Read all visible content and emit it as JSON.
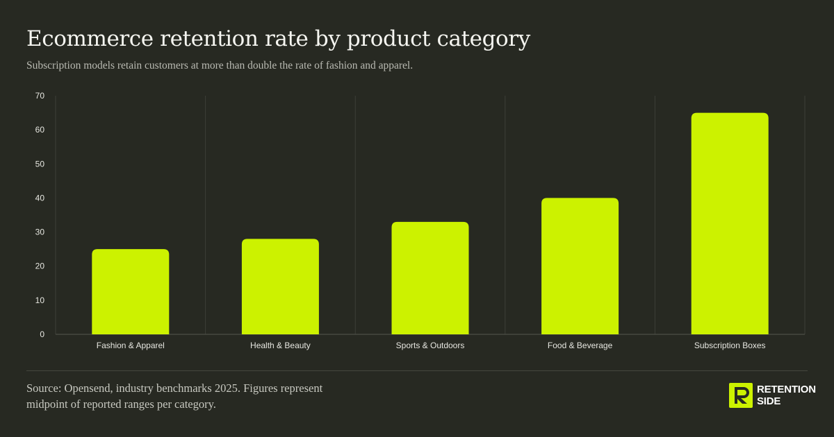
{
  "header": {
    "title": "Ecommerce retention rate by product category",
    "subtitle": "Subscription models retain customers at more than double the rate of fashion and apparel."
  },
  "chart_data": {
    "type": "bar",
    "categories": [
      "Fashion & Apparel",
      "Health & Beauty",
      "Sports & Outdoors",
      "Food & Beverage",
      "Subscription Boxes"
    ],
    "values": [
      25,
      28,
      33,
      40,
      65
    ],
    "title": "Ecommerce retention rate by product category",
    "subtitle": "Subscription models retain customers at more than double the rate of fashion and apparel.",
    "xlabel": "",
    "ylabel": "",
    "ylim": [
      0,
      70
    ],
    "yticks": [
      0,
      10,
      20,
      30,
      40,
      50,
      60,
      70
    ],
    "grid": "vertical category separators",
    "legend": "none",
    "bar_color": "#ccf200"
  },
  "footer": {
    "source": "Source: Opensend, industry benchmarks 2025. Figures represent midpoint of reported ranges per category.",
    "brand_line1": "RETENTION",
    "brand_line2": "SIDE"
  },
  "colors": {
    "background": "#272922",
    "accent": "#ccf200",
    "grid": "#3d3f38",
    "text": "#f5f5f0"
  }
}
